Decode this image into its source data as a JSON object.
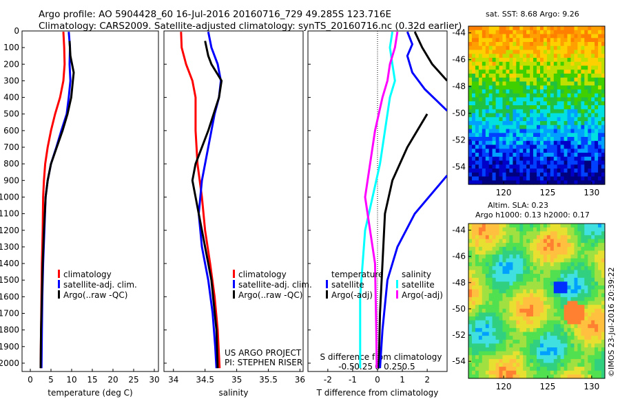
{
  "header": {
    "line1": "Argo profile: AO 5904428_60 16-Jul-2016 20160716_729 49.285S 123.716E",
    "line2": "Climatology: CARS2009. Satellite-adjusted climatology: synTS_20160716.nc (0.32d earlier)"
  },
  "colors": {
    "climatology": "#ff0000",
    "satellite": "#0000ff",
    "argo": "#000000",
    "sat_salinity": "#00ffff",
    "argo_salinity": "#ff00ff"
  },
  "chart_data": [
    {
      "id": "temperature",
      "type": "line",
      "xlabel": "temperature (deg C)",
      "ylabel": "",
      "xlim": [
        -2,
        31
      ],
      "ylim": [
        0,
        2050
      ],
      "xticks": [
        0,
        5,
        10,
        15,
        20,
        25,
        30
      ],
      "yticks": [
        0,
        100,
        200,
        300,
        400,
        500,
        600,
        700,
        800,
        900,
        1000,
        1100,
        1200,
        1300,
        1400,
        1500,
        1600,
        1700,
        1800,
        1900,
        2000
      ],
      "legend": [
        "climatology",
        "satellite-adj. clim.",
        "Argo(..raw -QC)"
      ],
      "series": [
        {
          "name": "climatology",
          "color": "#ff0000",
          "points": [
            [
              8,
              5
            ],
            [
              8.2,
              100
            ],
            [
              8.3,
              200
            ],
            [
              8.0,
              300
            ],
            [
              7.2,
              400
            ],
            [
              6.0,
              500
            ],
            [
              5.0,
              600
            ],
            [
              4.2,
              700
            ],
            [
              3.6,
              800
            ],
            [
              3.3,
              900
            ],
            [
              3.1,
              1000
            ],
            [
              3.0,
              1200
            ],
            [
              2.8,
              1400
            ],
            [
              2.7,
              1600
            ],
            [
              2.6,
              1800
            ],
            [
              2.5,
              2030
            ]
          ]
        },
        {
          "name": "satellite-adj. clim.",
          "color": "#0000ff",
          "points": [
            [
              9.3,
              5
            ],
            [
              9.6,
              100
            ],
            [
              9.5,
              200
            ],
            [
              9.7,
              300
            ],
            [
              9.3,
              400
            ],
            [
              8.8,
              500
            ],
            [
              7.5,
              600
            ],
            [
              6.3,
              700
            ],
            [
              5.0,
              800
            ],
            [
              4.2,
              900
            ],
            [
              3.7,
              1000
            ],
            [
              3.4,
              1200
            ],
            [
              3.1,
              1400
            ],
            [
              2.9,
              1600
            ],
            [
              2.8,
              1800
            ],
            [
              2.7,
              2030
            ]
          ]
        },
        {
          "name": "Argo(..raw -QC)",
          "color": "#000000",
          "points": [
            [
              9.5,
              60
            ],
            [
              9.7,
              150
            ],
            [
              10.5,
              250
            ],
            [
              10.3,
              300
            ],
            [
              9.9,
              400
            ],
            [
              9.0,
              500
            ],
            [
              7.8,
              600
            ],
            [
              6.4,
              700
            ],
            [
              5.0,
              800
            ],
            [
              4.2,
              900
            ],
            [
              3.7,
              1000
            ],
            [
              3.3,
              1200
            ],
            [
              3.0,
              1400
            ],
            [
              2.8,
              1600
            ],
            [
              2.6,
              1800
            ],
            [
              2.5,
              2030
            ]
          ]
        }
      ]
    },
    {
      "id": "salinity",
      "type": "line",
      "xlabel": "salinity",
      "ylabel": "",
      "xlim": [
        33.85,
        36.05
      ],
      "ylim": [
        0,
        2050
      ],
      "xticks": [
        34,
        34.5,
        35,
        35.5,
        36
      ],
      "yticks": [],
      "legend": [
        "climatology",
        "satellite-adj. clim.",
        "Argo(..raw -QC)"
      ],
      "notes": [
        "US ARGO PROJECT",
        "PI: STEPHEN RISER"
      ],
      "series": [
        {
          "name": "climatology",
          "color": "#ff0000",
          "points": [
            [
              34.12,
              5
            ],
            [
              34.13,
              100
            ],
            [
              34.2,
              200
            ],
            [
              34.3,
              300
            ],
            [
              34.35,
              400
            ],
            [
              34.35,
              600
            ],
            [
              34.38,
              800
            ],
            [
              34.45,
              1000
            ],
            [
              34.5,
              1200
            ],
            [
              34.58,
              1400
            ],
            [
              34.65,
              1600
            ],
            [
              34.7,
              1800
            ],
            [
              34.73,
              2030
            ]
          ]
        },
        {
          "name": "satellite-adj. clim.",
          "color": "#0000ff",
          "points": [
            [
              34.55,
              5
            ],
            [
              34.6,
              100
            ],
            [
              34.7,
              200
            ],
            [
              34.75,
              300
            ],
            [
              34.72,
              400
            ],
            [
              34.65,
              500
            ],
            [
              34.55,
              700
            ],
            [
              34.45,
              900
            ],
            [
              34.4,
              1100
            ],
            [
              34.45,
              1300
            ],
            [
              34.55,
              1500
            ],
            [
              34.62,
              1700
            ],
            [
              34.66,
              1900
            ],
            [
              34.68,
              2030
            ]
          ]
        },
        {
          "name": "Argo(..raw -QC)",
          "color": "#000000",
          "points": [
            [
              34.5,
              60
            ],
            [
              34.55,
              150
            ],
            [
              34.6,
              200
            ],
            [
              34.76,
              300
            ],
            [
              34.72,
              400
            ],
            [
              34.55,
              600
            ],
            [
              34.35,
              800
            ],
            [
              34.3,
              900
            ],
            [
              34.35,
              1000
            ],
            [
              34.45,
              1200
            ],
            [
              34.6,
              1500
            ],
            [
              34.68,
              1800
            ],
            [
              34.7,
              2030
            ]
          ]
        }
      ]
    },
    {
      "id": "difference",
      "type": "line",
      "xlabel": "T difference from climatology",
      "xlabel_top": "S difference from climatology",
      "xlim": [
        -2.8,
        2.8
      ],
      "ylim": [
        0,
        2050
      ],
      "xticks": [
        -2,
        -1,
        0,
        1,
        2
      ],
      "xticks_top": [
        "-0.5",
        "-0.25",
        "0",
        "0.25",
        "0.5"
      ],
      "legend_titles": [
        "temperature",
        "salinity"
      ],
      "legend": [
        "satellite",
        "Argo(-adj)",
        "satellite",
        "Argo(-adj)"
      ],
      "series": [
        {
          "name": "temperature satellite",
          "color": "#0000ff",
          "points": [
            [
              1.2,
              5
            ],
            [
              1.4,
              80
            ],
            [
              1.2,
              150
            ],
            [
              1.4,
              250
            ],
            [
              1.9,
              350
            ],
            [
              2.8,
              480
            ]
          ]
        },
        {
          "name": "temperature Argo(-adj)",
          "color": "#000000",
          "points": [
            [
              1.5,
              5
            ],
            [
              1.8,
              100
            ],
            [
              2.2,
              200
            ],
            [
              2.8,
              300
            ]
          ]
        },
        {
          "name": "salinity satellite",
          "color": "#00ffff",
          "points": [
            [
              0.6,
              5
            ],
            [
              0.5,
              100
            ],
            [
              0.6,
              200
            ],
            [
              0.7,
              300
            ],
            [
              0.5,
              400
            ],
            [
              0.3,
              600
            ],
            [
              0.1,
              800
            ],
            [
              -0.2,
              1000
            ],
            [
              -0.5,
              1200
            ],
            [
              -0.6,
              1400
            ],
            [
              -0.7,
              1600
            ],
            [
              -0.7,
              2030
            ]
          ]
        },
        {
          "name": "salinity Argo(-adj)",
          "color": "#ff00ff",
          "points": [
            [
              0.8,
              5
            ],
            [
              0.7,
              100
            ],
            [
              0.5,
              200
            ],
            [
              0.4,
              300
            ],
            [
              0.2,
              400
            ],
            [
              -0.1,
              600
            ],
            [
              -0.3,
              800
            ],
            [
              -0.5,
              1000
            ],
            [
              -0.3,
              1200
            ],
            [
              -0.1,
              1400
            ],
            [
              -0.05,
              1800
            ],
            [
              -0.03,
              2030
            ]
          ]
        },
        {
          "name": "temperature Argo(-adj) deep",
          "color": "#000000",
          "points": [
            [
              2.0,
              500
            ],
            [
              1.2,
              700
            ],
            [
              0.6,
              900
            ],
            [
              0.3,
              1100
            ],
            [
              0.2,
              1400
            ],
            [
              0.1,
              1700
            ],
            [
              0.05,
              2030
            ]
          ]
        },
        {
          "name": "temperature satellite deep",
          "color": "#0000ff",
          "points": [
            [
              2.8,
              870
            ],
            [
              1.5,
              1100
            ],
            [
              0.8,
              1300
            ],
            [
              0.4,
              1500
            ],
            [
              0.2,
              1800
            ],
            [
              0.1,
              2030
            ]
          ]
        }
      ]
    }
  ],
  "maps": {
    "sst": {
      "title": "sat. SST: 8.68 Argo: 9.26",
      "xticks": [
        120,
        125,
        130
      ],
      "yticks": [
        -44,
        -46,
        -48,
        -50,
        -52,
        -54
      ]
    },
    "sla": {
      "title1": "Altim. SLA: 0.23",
      "title2": "Argo h1000: 0.13 h2000: 0.17",
      "xticks": [
        120,
        125,
        130
      ],
      "yticks": [
        -44,
        -46,
        -48,
        -50,
        -52,
        -54
      ]
    },
    "credit": "©IMOS 23-Jul-2016 20:39:22"
  }
}
